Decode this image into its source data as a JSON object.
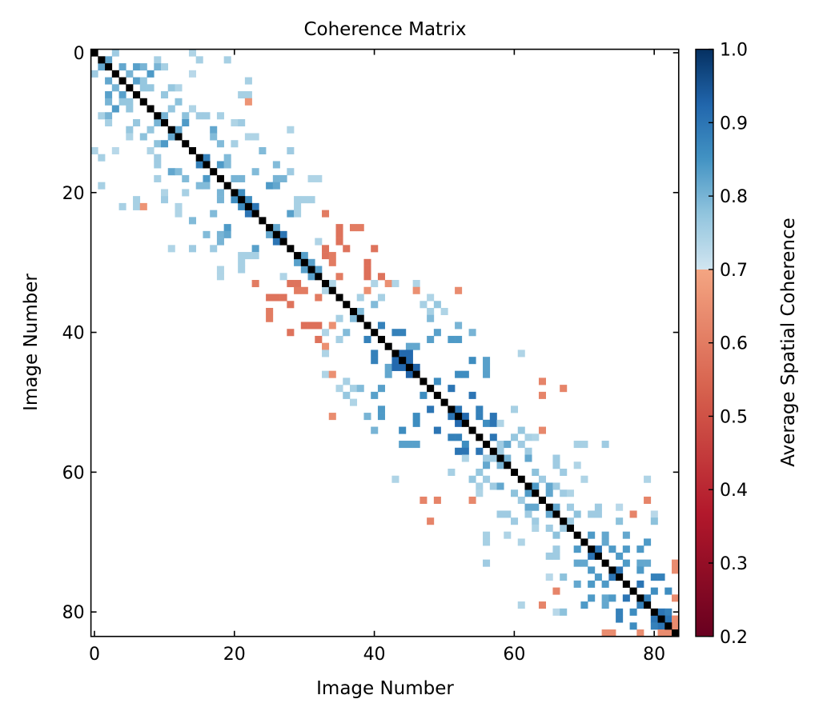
{
  "chart_data": {
    "type": "heatmap",
    "title": "Coherence Matrix",
    "xlabel": "Image Number",
    "ylabel": "Image Number",
    "n": 84,
    "symmetric": true,
    "diagonal_value": 1.0,
    "diagonal_color": "#000000",
    "xticks": [
      0,
      20,
      40,
      60,
      80
    ],
    "yticks": [
      0,
      20,
      40,
      60,
      80
    ],
    "xtick_labels": [
      "0",
      "20",
      "40",
      "60",
      "80"
    ],
    "ytick_labels": [
      "0",
      "20",
      "40",
      "60",
      "80"
    ],
    "colorbar": {
      "label": "Average Spatial Coherence",
      "range": [
        0.2,
        1.0
      ],
      "break_value": 0.7,
      "ticks": [
        0.2,
        0.3,
        0.4,
        0.5,
        0.6,
        0.7,
        0.8,
        0.9,
        1.0
      ],
      "tick_labels": [
        "0.2",
        "0.3",
        "0.4",
        "0.5",
        "0.6",
        "0.7",
        "0.8",
        "0.9",
        "1.0"
      ],
      "colors_low": [
        "#67001f",
        "#b2182b",
        "#d6604d",
        "#f4a582"
      ],
      "colors_high": [
        "#d1e5f0",
        "#92c5de",
        "#4393c3",
        "#2166ac",
        "#053061"
      ]
    },
    "cells_upper": [
      [
        0,
        3,
        0.76
      ],
      [
        0,
        14,
        0.74
      ],
      [
        1,
        2,
        0.82
      ],
      [
        1,
        9,
        0.75
      ],
      [
        1,
        15,
        0.75
      ],
      [
        1,
        19,
        0.75
      ],
      [
        2,
        4,
        0.82
      ],
      [
        2,
        6,
        0.83
      ],
      [
        2,
        7,
        0.8
      ],
      [
        2,
        9,
        0.8
      ],
      [
        2,
        10,
        0.75
      ],
      [
        3,
        5,
        0.8
      ],
      [
        3,
        8,
        0.84
      ],
      [
        3,
        14,
        0.73
      ],
      [
        4,
        6,
        0.83
      ],
      [
        4,
        7,
        0.77
      ],
      [
        4,
        22,
        0.75
      ],
      [
        5,
        7,
        0.77
      ],
      [
        5,
        8,
        0.77
      ],
      [
        5,
        11,
        0.77
      ],
      [
        5,
        12,
        0.74
      ],
      [
        6,
        10,
        0.77
      ],
      [
        6,
        21,
        0.75
      ],
      [
        6,
        22,
        0.75
      ],
      [
        7,
        12,
        0.78
      ],
      [
        7,
        22,
        0.66
      ],
      [
        8,
        11,
        0.77
      ],
      [
        8,
        14,
        0.74
      ],
      [
        9,
        10,
        0.8
      ],
      [
        9,
        13,
        0.78
      ],
      [
        9,
        15,
        0.76
      ],
      [
        9,
        16,
        0.76
      ],
      [
        9,
        18,
        0.75
      ],
      [
        10,
        13,
        0.84
      ],
      [
        10,
        20,
        0.74
      ],
      [
        10,
        21,
        0.76
      ],
      [
        11,
        12,
        0.82
      ],
      [
        11,
        17,
        0.82
      ],
      [
        11,
        28,
        0.74
      ],
      [
        12,
        17,
        0.79
      ],
      [
        12,
        22,
        0.74
      ],
      [
        12,
        23,
        0.74
      ],
      [
        13,
        18,
        0.79
      ],
      [
        13,
        20,
        0.75
      ],
      [
        14,
        24,
        0.79
      ],
      [
        14,
        28,
        0.76
      ],
      [
        15,
        16,
        0.88
      ],
      [
        15,
        19,
        0.79
      ],
      [
        16,
        18,
        0.84
      ],
      [
        16,
        19,
        0.79
      ],
      [
        16,
        26,
        0.79
      ],
      [
        17,
        23,
        0.79
      ],
      [
        17,
        28,
        0.76
      ],
      [
        18,
        20,
        0.8
      ],
      [
        18,
        21,
        0.8
      ],
      [
        18,
        26,
        0.8
      ],
      [
        18,
        27,
        0.8
      ],
      [
        18,
        31,
        0.74
      ],
      [
        18,
        32,
        0.74
      ],
      [
        19,
        25,
        0.84
      ],
      [
        19,
        26,
        0.82
      ],
      [
        20,
        21,
        0.86
      ],
      [
        21,
        22,
        0.86
      ],
      [
        21,
        29,
        0.75
      ],
      [
        21,
        30,
        0.75
      ],
      [
        21,
        31,
        0.75
      ],
      [
        22,
        23,
        0.9
      ],
      [
        22,
        29,
        0.75
      ],
      [
        23,
        28,
        0.83
      ],
      [
        23,
        29,
        0.75
      ],
      [
        23,
        33,
        0.6
      ],
      [
        25,
        26,
        0.82
      ],
      [
        25,
        35,
        0.58
      ],
      [
        25,
        37,
        0.6
      ],
      [
        25,
        38,
        0.6
      ],
      [
        26,
        27,
        0.9
      ],
      [
        26,
        35,
        0.58
      ],
      [
        27,
        32,
        0.74
      ],
      [
        27,
        35,
        0.58
      ],
      [
        28,
        33,
        0.58
      ],
      [
        28,
        36,
        0.58
      ],
      [
        28,
        40,
        0.58
      ],
      [
        29,
        30,
        0.83
      ],
      [
        29,
        33,
        0.58
      ],
      [
        29,
        34,
        0.6
      ],
      [
        30,
        31,
        0.83
      ],
      [
        30,
        34,
        0.6
      ],
      [
        30,
        39,
        0.57
      ],
      [
        31,
        32,
        0.83
      ],
      [
        31,
        39,
        0.57
      ],
      [
        32,
        35,
        0.6
      ],
      [
        32,
        39,
        0.57
      ],
      [
        32,
        41,
        0.58
      ],
      [
        33,
        34,
        0.74
      ],
      [
        33,
        40,
        0.74
      ],
      [
        33,
        42,
        0.65
      ],
      [
        33,
        43,
        0.74
      ],
      [
        33,
        46,
        0.74
      ],
      [
        34,
        39,
        0.65
      ],
      [
        34,
        46,
        0.65
      ],
      [
        34,
        52,
        0.64
      ],
      [
        35,
        38,
        0.75
      ],
      [
        35,
        41,
        0.75
      ],
      [
        35,
        48,
        0.74
      ],
      [
        36,
        40,
        0.79
      ],
      [
        36,
        47,
        0.75
      ],
      [
        36,
        49,
        0.77
      ],
      [
        37,
        38,
        0.79
      ],
      [
        37,
        48,
        0.75
      ],
      [
        37,
        50,
        0.74
      ],
      [
        38,
        48,
        0.79
      ],
      [
        39,
        41,
        0.88
      ],
      [
        39,
        52,
        0.8
      ],
      [
        40,
        43,
        0.88
      ],
      [
        40,
        44,
        0.88
      ],
      [
        40,
        49,
        0.83
      ],
      [
        40,
        54,
        0.8
      ],
      [
        41,
        48,
        0.83
      ],
      [
        41,
        51,
        0.84
      ],
      [
        41,
        52,
        0.84
      ],
      [
        42,
        45,
        0.82
      ],
      [
        42,
        46,
        0.82
      ],
      [
        43,
        44,
        0.92
      ],
      [
        43,
        45,
        0.92
      ],
      [
        43,
        61,
        0.74
      ],
      [
        44,
        45,
        0.92
      ],
      [
        44,
        54,
        0.86
      ],
      [
        44,
        56,
        0.83
      ],
      [
        45,
        46,
        0.93
      ],
      [
        45,
        56,
        0.83
      ],
      [
        46,
        52,
        0.86
      ],
      [
        46,
        53,
        0.86
      ],
      [
        46,
        56,
        0.83
      ],
      [
        47,
        49,
        0.86
      ],
      [
        47,
        64,
        0.62
      ],
      [
        48,
        51,
        0.9
      ],
      [
        48,
        67,
        0.62
      ],
      [
        49,
        54,
        0.9
      ],
      [
        49,
        64,
        0.62
      ],
      [
        51,
        52,
        0.9
      ],
      [
        51,
        55,
        0.88
      ],
      [
        51,
        60,
        0.75
      ],
      [
        52,
        53,
        0.92
      ],
      [
        52,
        55,
        0.88
      ],
      [
        52,
        57,
        0.9
      ],
      [
        53,
        56,
        0.86
      ],
      [
        53,
        57,
        0.9
      ],
      [
        53,
        58,
        0.74
      ],
      [
        54,
        61,
        0.77
      ],
      [
        54,
        64,
        0.63
      ],
      [
        55,
        57,
        0.9
      ],
      [
        55,
        60,
        0.77
      ],
      [
        55,
        62,
        0.75
      ],
      [
        55,
        63,
        0.74
      ],
      [
        56,
        58,
        0.76
      ],
      [
        56,
        59,
        0.82
      ],
      [
        56,
        61,
        0.76
      ],
      [
        56,
        69,
        0.75
      ],
      [
        56,
        70,
        0.75
      ],
      [
        56,
        73,
        0.76
      ],
      [
        57,
        58,
        0.76
      ],
      [
        57,
        62,
        0.76
      ],
      [
        58,
        59,
        0.8
      ],
      [
        58,
        62,
        0.82
      ],
      [
        58,
        66,
        0.76
      ],
      [
        59,
        66,
        0.76
      ],
      [
        59,
        69,
        0.74
      ],
      [
        60,
        63,
        0.78
      ],
      [
        60,
        67,
        0.76
      ],
      [
        61,
        64,
        0.76
      ],
      [
        61,
        70,
        0.74
      ],
      [
        61,
        79,
        0.74
      ],
      [
        62,
        63,
        0.84
      ],
      [
        62,
        65,
        0.82
      ],
      [
        62,
        66,
        0.76
      ],
      [
        63,
        65,
        0.82
      ],
      [
        63,
        67,
        0.76
      ],
      [
        63,
        68,
        0.74
      ],
      [
        64,
        79,
        0.62
      ],
      [
        65,
        66,
        0.82
      ],
      [
        65,
        68,
        0.76
      ],
      [
        65,
        72,
        0.76
      ],
      [
        65,
        75,
        0.73
      ],
      [
        66,
        69,
        0.78
      ],
      [
        66,
        71,
        0.76
      ],
      [
        66,
        72,
        0.76
      ],
      [
        66,
        77,
        0.62
      ],
      [
        66,
        80,
        0.73
      ],
      [
        67,
        68,
        0.76
      ],
      [
        67,
        75,
        0.78
      ],
      [
        67,
        80,
        0.78
      ],
      [
        69,
        71,
        0.84
      ],
      [
        69,
        73,
        0.82
      ],
      [
        69,
        76,
        0.82
      ],
      [
        70,
        73,
        0.82
      ],
      [
        70,
        79,
        0.84
      ],
      [
        71,
        72,
        0.9
      ],
      [
        71,
        74,
        0.84
      ],
      [
        71,
        76,
        0.84
      ],
      [
        71,
        78,
        0.84
      ],
      [
        72,
        75,
        0.84
      ],
      [
        73,
        76,
        0.84
      ],
      [
        73,
        78,
        0.82
      ],
      [
        73,
        79,
        0.82
      ],
      [
        73,
        83,
        0.64
      ],
      [
        74,
        75,
        0.9
      ],
      [
        74,
        78,
        0.84
      ],
      [
        74,
        83,
        0.64
      ],
      [
        75,
        80,
        0.88
      ],
      [
        75,
        81,
        0.88
      ],
      [
        76,
        78,
        0.9
      ],
      [
        77,
        80,
        0.86
      ],
      [
        77,
        82,
        0.86
      ],
      [
        78,
        79,
        0.88
      ],
      [
        78,
        83,
        0.64
      ],
      [
        80,
        81,
        0.9
      ],
      [
        80,
        82,
        0.88
      ],
      [
        81,
        82,
        0.9
      ],
      [
        81,
        83,
        0.64
      ],
      [
        82,
        83,
        0.64
      ]
    ]
  }
}
